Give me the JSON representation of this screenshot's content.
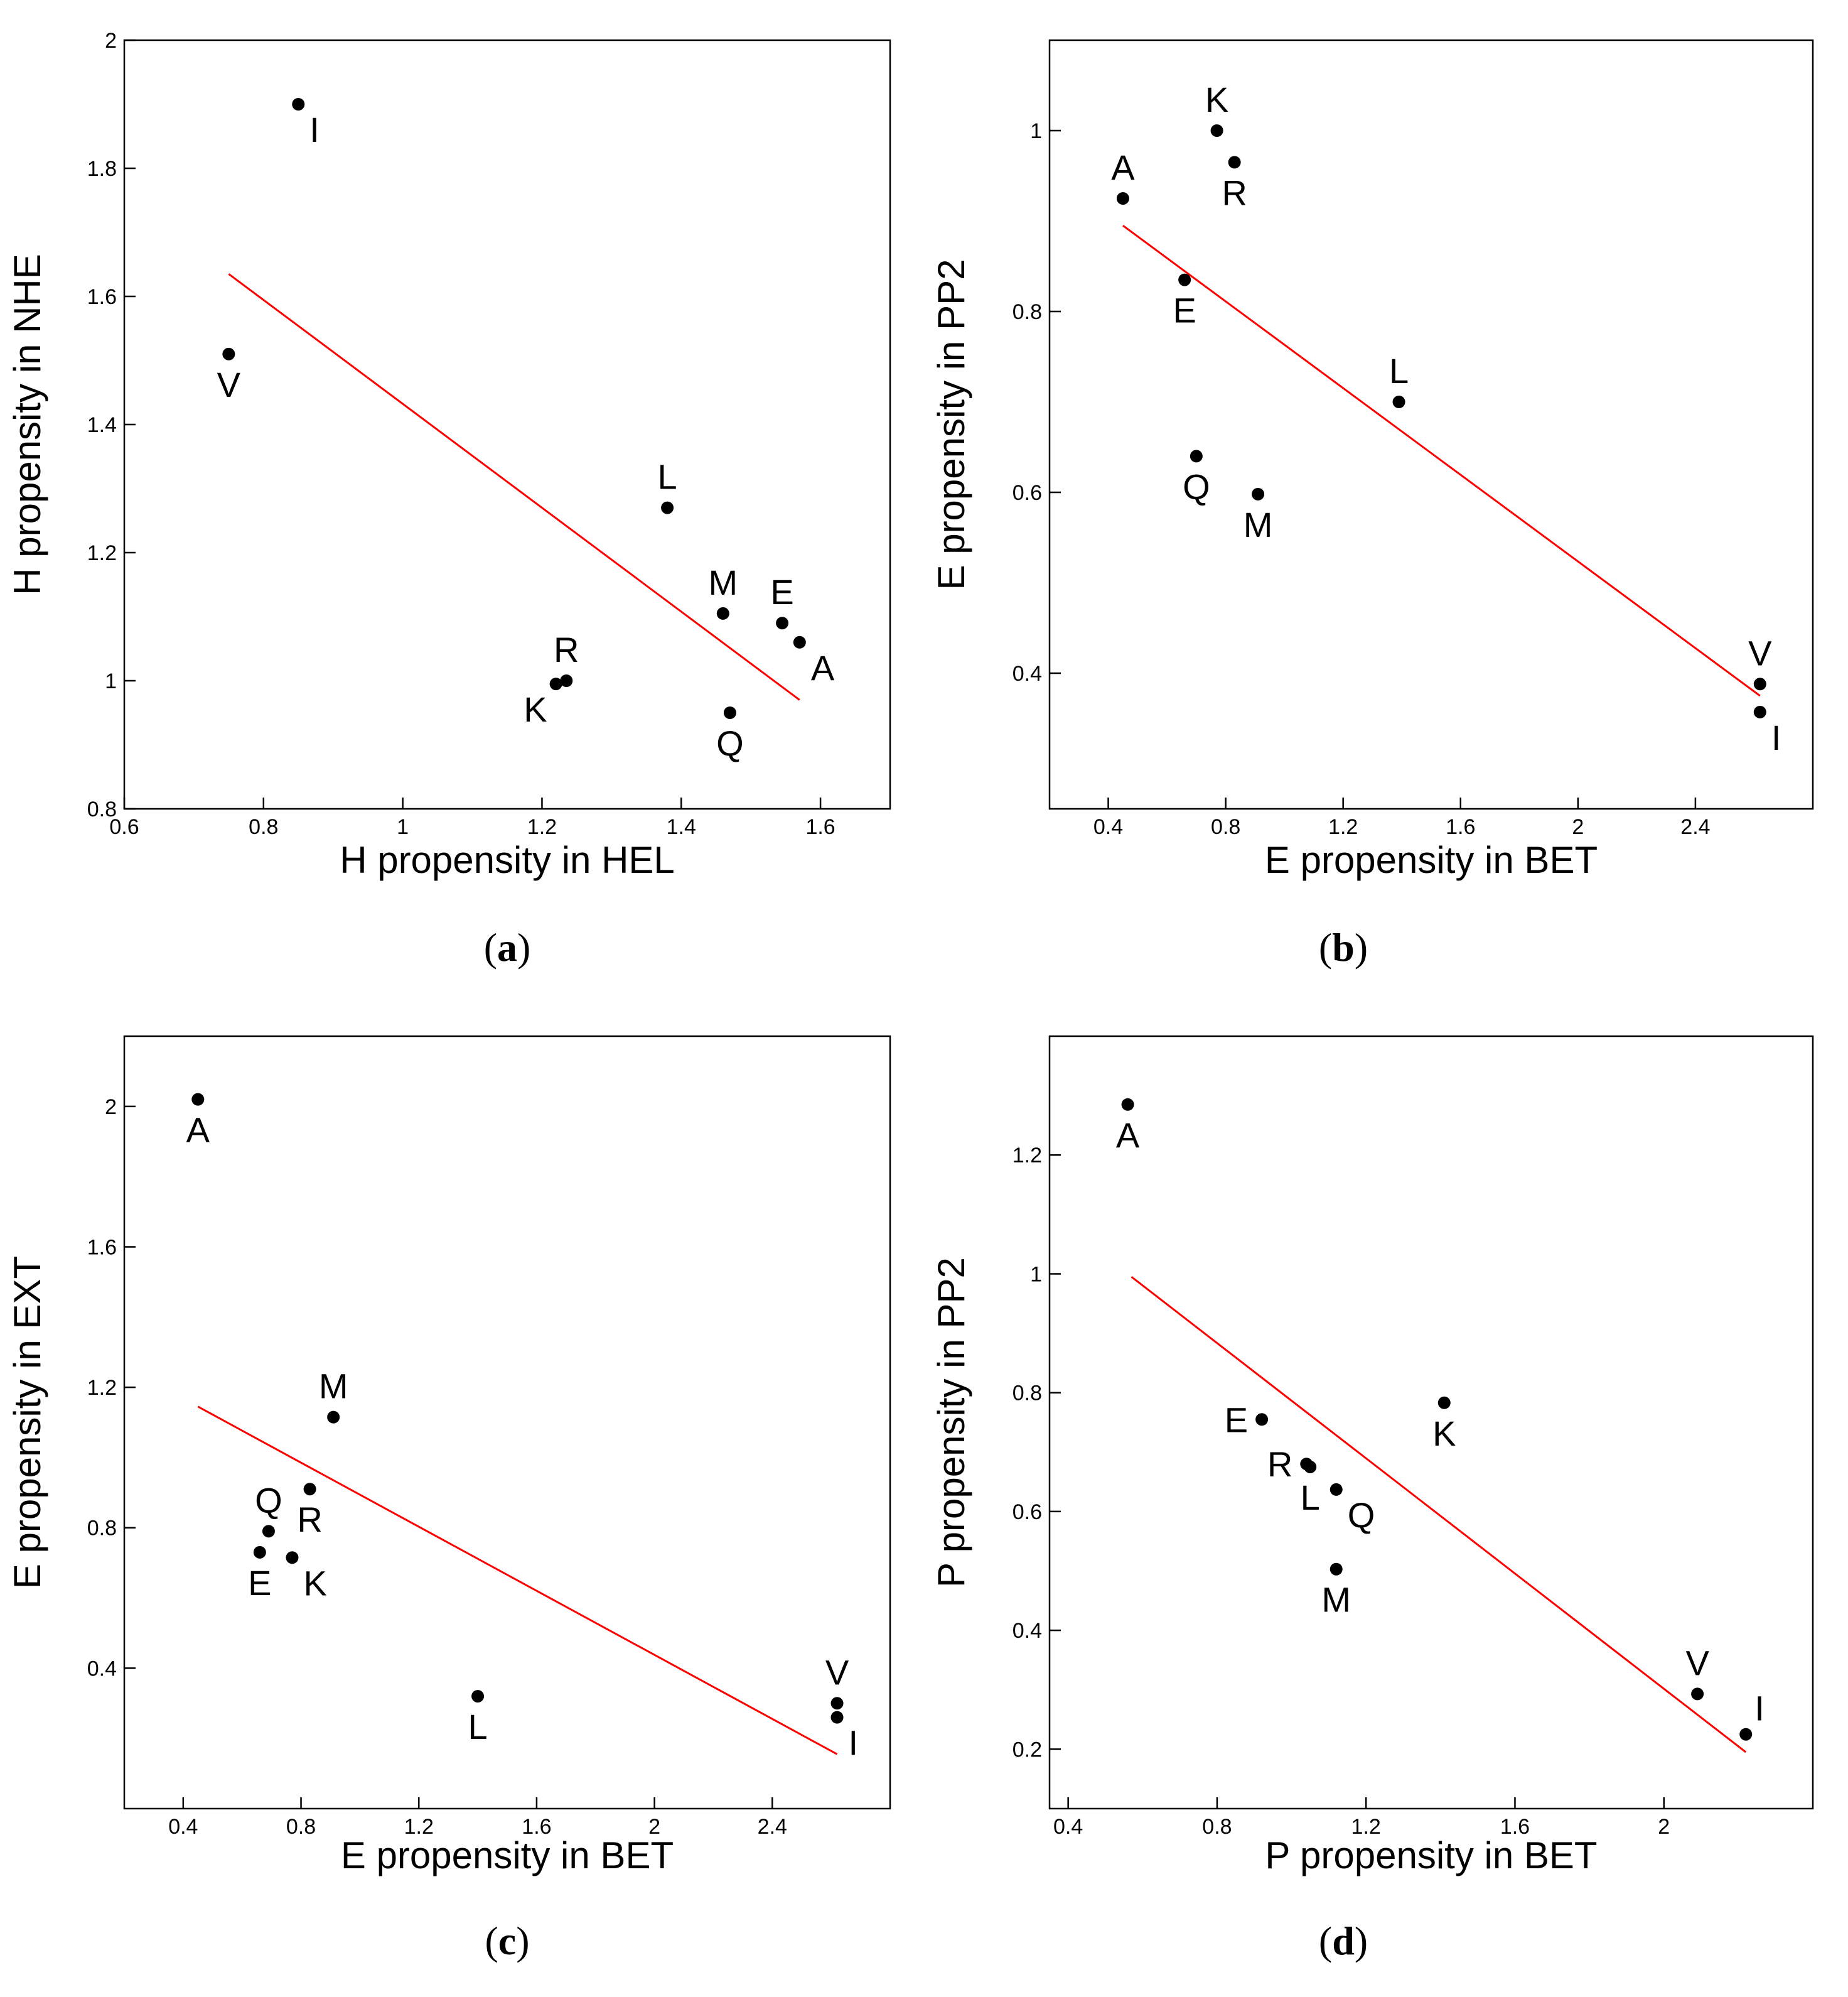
{
  "figure": {
    "panel_labels": [
      {
        "open": "(",
        "letter": "a",
        "close": ")"
      },
      {
        "open": "(",
        "letter": "b",
        "close": ")"
      },
      {
        "open": "(",
        "letter": "c",
        "close": ")"
      },
      {
        "open": "(",
        "letter": "d",
        "close": ")"
      }
    ]
  },
  "chart_data": [
    {
      "type": "scatter",
      "panel": "a",
      "xlabel": "H propensity in HEL",
      "ylabel": "H propensity in NHE",
      "xlim": [
        0.6,
        1.7
      ],
      "ylim": [
        0.8,
        2.0
      ],
      "xticks": [
        0.6,
        0.8,
        1.0,
        1.2,
        1.4,
        1.6
      ],
      "xtick_labels": [
        "0.6",
        "0.8",
        "1",
        "1.2",
        "1.4",
        "1.6"
      ],
      "yticks": [
        0.8,
        1.0,
        1.2,
        1.4,
        1.6,
        1.8,
        2.0
      ],
      "ytick_labels": [
        "0.8",
        "1",
        "1.2",
        "1.4",
        "1.6",
        "1.8",
        "2"
      ],
      "points": [
        {
          "label": "I",
          "x": 0.85,
          "y": 1.9,
          "pos": "se"
        },
        {
          "label": "V",
          "x": 0.75,
          "y": 1.51,
          "pos": "s"
        },
        {
          "label": "L",
          "x": 1.38,
          "y": 1.27,
          "pos": "n"
        },
        {
          "label": "M",
          "x": 1.46,
          "y": 1.105,
          "pos": "n"
        },
        {
          "label": "E",
          "x": 1.545,
          "y": 1.09,
          "pos": "n"
        },
        {
          "label": "A",
          "x": 1.57,
          "y": 1.06,
          "pos": "se"
        },
        {
          "label": "R",
          "x": 1.235,
          "y": 1.0,
          "pos": "n"
        },
        {
          "label": "K",
          "x": 1.22,
          "y": 0.995,
          "pos": "sw"
        },
        {
          "label": "Q",
          "x": 1.47,
          "y": 0.95,
          "pos": "s"
        }
      ],
      "fit_line": {
        "x": [
          0.75,
          1.57
        ],
        "y": [
          1.635,
          0.97
        ],
        "color": "#ff0000"
      }
    },
    {
      "type": "scatter",
      "panel": "b",
      "xlabel": "E propensity in BET",
      "ylabel": "E propensity in PP2",
      "xlim": [
        0.2,
        2.8
      ],
      "ylim": [
        0.25,
        1.1
      ],
      "xticks": [
        0.4,
        0.8,
        1.2,
        1.6,
        2.0,
        2.4
      ],
      "xtick_labels": [
        "0.4",
        "0.8",
        "1.2",
        "1.6",
        "2",
        "2.4"
      ],
      "yticks": [
        0.4,
        0.6,
        0.8,
        1.0
      ],
      "ytick_labels": [
        "0.4",
        "0.6",
        "0.8",
        "1"
      ],
      "points": [
        {
          "label": "K",
          "x": 0.77,
          "y": 1.0,
          "pos": "n"
        },
        {
          "label": "R",
          "x": 0.83,
          "y": 0.965,
          "pos": "s"
        },
        {
          "label": "A",
          "x": 0.45,
          "y": 0.925,
          "pos": "n"
        },
        {
          "label": "E",
          "x": 0.66,
          "y": 0.835,
          "pos": "s"
        },
        {
          "label": "L",
          "x": 1.39,
          "y": 0.7,
          "pos": "n"
        },
        {
          "label": "Q",
          "x": 0.7,
          "y": 0.64,
          "pos": "s"
        },
        {
          "label": "M",
          "x": 0.91,
          "y": 0.598,
          "pos": "s"
        },
        {
          "label": "V",
          "x": 2.62,
          "y": 0.388,
          "pos": "n"
        },
        {
          "label": "I",
          "x": 2.62,
          "y": 0.357,
          "pos": "se"
        }
      ],
      "fit_line": {
        "x": [
          0.45,
          2.62
        ],
        "y": [
          0.895,
          0.375
        ],
        "color": "#ff0000"
      }
    },
    {
      "type": "scatter",
      "panel": "c",
      "xlabel": "E propensity in BET",
      "ylabel": "E propensity in EXT",
      "xlim": [
        0.2,
        2.8
      ],
      "ylim": [
        0.0,
        2.2
      ],
      "xticks": [
        0.4,
        0.8,
        1.2,
        1.6,
        2.0,
        2.4
      ],
      "xtick_labels": [
        "0.4",
        "0.8",
        "1.2",
        "1.6",
        "2",
        "2.4"
      ],
      "yticks": [
        0.4,
        0.8,
        1.2,
        1.6,
        2.0
      ],
      "ytick_labels": [
        "0.4",
        "0.8",
        "1.2",
        "1.6",
        "2"
      ],
      "points": [
        {
          "label": "A",
          "x": 0.45,
          "y": 2.02,
          "pos": "s"
        },
        {
          "label": "M",
          "x": 0.91,
          "y": 1.115,
          "pos": "n"
        },
        {
          "label": "R",
          "x": 0.83,
          "y": 0.91,
          "pos": "s"
        },
        {
          "label": "Q",
          "x": 0.69,
          "y": 0.79,
          "pos": "n"
        },
        {
          "label": "E",
          "x": 0.66,
          "y": 0.73,
          "pos": "s"
        },
        {
          "label": "K",
          "x": 0.77,
          "y": 0.715,
          "pos": "se"
        },
        {
          "label": "L",
          "x": 1.4,
          "y": 0.32,
          "pos": "s"
        },
        {
          "label": "V",
          "x": 2.62,
          "y": 0.3,
          "pos": "n"
        },
        {
          "label": "I",
          "x": 2.62,
          "y": 0.26,
          "pos": "se"
        }
      ],
      "fit_line": {
        "x": [
          0.45,
          2.62
        ],
        "y": [
          1.145,
          0.155
        ],
        "color": "#ff0000"
      }
    },
    {
      "type": "scatter",
      "panel": "d",
      "xlabel": "P propensity in BET",
      "ylabel": "P propensity in PP2",
      "xlim": [
        0.35,
        2.4
      ],
      "ylim": [
        0.1,
        1.4
      ],
      "xticks": [
        0.4,
        0.8,
        1.2,
        1.6,
        2.0
      ],
      "xtick_labels": [
        "0.4",
        "0.8",
        "1.2",
        "1.6",
        "2"
      ],
      "yticks": [
        0.2,
        0.4,
        0.6,
        0.8,
        1.0,
        1.2
      ],
      "ytick_labels": [
        "0.2",
        "0.4",
        "0.6",
        "0.8",
        "1",
        "1.2"
      ],
      "points": [
        {
          "label": "A",
          "x": 0.56,
          "y": 1.285,
          "pos": "s"
        },
        {
          "label": "K",
          "x": 1.41,
          "y": 0.783,
          "pos": "s"
        },
        {
          "label": "E",
          "x": 0.92,
          "y": 0.755,
          "pos": "w"
        },
        {
          "label": "R",
          "x": 1.04,
          "y": 0.68,
          "pos": "w"
        },
        {
          "label": "L",
          "x": 1.05,
          "y": 0.675,
          "pos": "s"
        },
        {
          "label": "Q",
          "x": 1.12,
          "y": 0.637,
          "pos": "se"
        },
        {
          "label": "M",
          "x": 1.12,
          "y": 0.503,
          "pos": "s"
        },
        {
          "label": "V",
          "x": 2.09,
          "y": 0.293,
          "pos": "n"
        },
        {
          "label": "I",
          "x": 2.22,
          "y": 0.225,
          "pos": "ne"
        }
      ],
      "fit_line": {
        "x": [
          0.57,
          2.22
        ],
        "y": [
          0.995,
          0.195
        ],
        "color": "#ff0000"
      }
    }
  ]
}
